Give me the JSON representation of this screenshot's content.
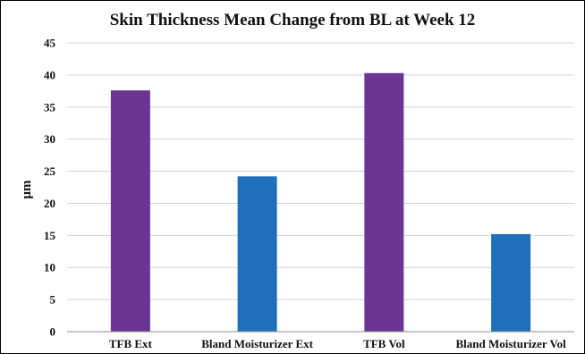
{
  "chart_data": {
    "type": "bar",
    "title": "Skin Thickness Mean Change from BL at Week 12",
    "xlabel": "",
    "ylabel": "μm",
    "categories": [
      "TFB Ext",
      "Bland Moisturizer Ext",
      "TFB Vol",
      "Bland Moisturizer Vol"
    ],
    "values": [
      37.6,
      24.2,
      40.3,
      15.2
    ],
    "bar_colors": [
      "#6b3594",
      "#1f6fba",
      "#6b3594",
      "#1f6fba"
    ],
    "ylim": [
      0,
      45
    ],
    "yticks": [
      0,
      5,
      10,
      15,
      20,
      25,
      30,
      35,
      40,
      45
    ],
    "grid": true,
    "legend": "none"
  }
}
